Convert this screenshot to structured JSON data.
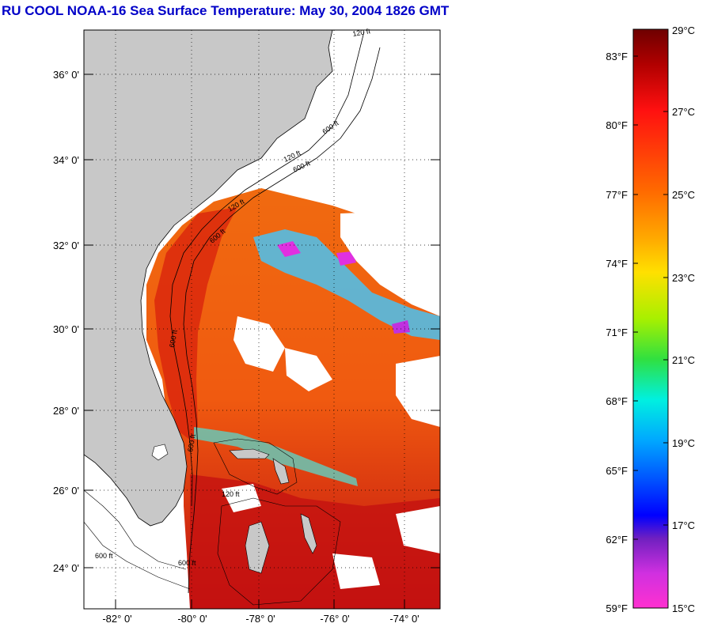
{
  "title": "RU COOL  NOAA-16  Sea Surface Temperature:  May 30, 2004 1826 GMT",
  "map": {
    "lat_labels": [
      "36° 0'",
      "34° 0'",
      "32° 0'",
      "30° 0'",
      "28° 0'",
      "26° 0'",
      "24° 0'"
    ],
    "lon_labels": [
      "-82° 0'",
      "-80° 0'",
      "-78° 0'",
      "-76° 0'",
      "-74° 0'"
    ],
    "contour_labels": [
      "120 ft",
      "600 ft",
      "120 ft",
      "600 ft",
      "600 ft",
      "120 ft",
      "600 ft",
      "600 ft",
      "120 ft",
      "600 ft",
      "600 ft"
    ]
  },
  "colorbar": {
    "celsius_labels": [
      "29°C",
      "27°C",
      "25°C",
      "23°C",
      "21°C",
      "19°C",
      "17°C",
      "15°C"
    ],
    "fahrenheit_labels": [
      "83°F",
      "80°F",
      "77°F",
      "74°F",
      "71°F",
      "68°F",
      "65°F",
      "62°F",
      "59°F"
    ]
  },
  "colors": {
    "title": "#0000c8",
    "land": "#c8c8c8",
    "warm": "#d81c0a",
    "cloud": "#ffffff"
  }
}
